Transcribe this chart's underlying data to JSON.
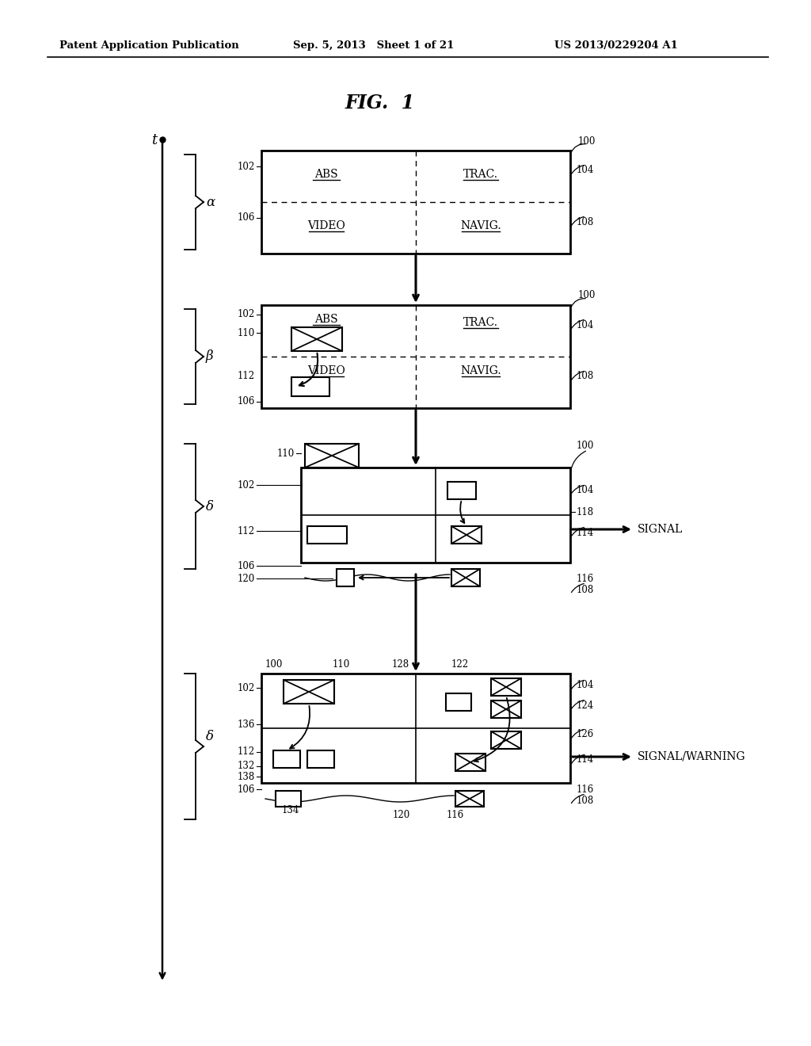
{
  "bg_color": "#ffffff",
  "header_left": "Patent Application Publication",
  "header_mid": "Sep. 5, 2013   Sheet 1 of 21",
  "header_right": "US 2013/0229204 A1",
  "title": "FIG.  1"
}
